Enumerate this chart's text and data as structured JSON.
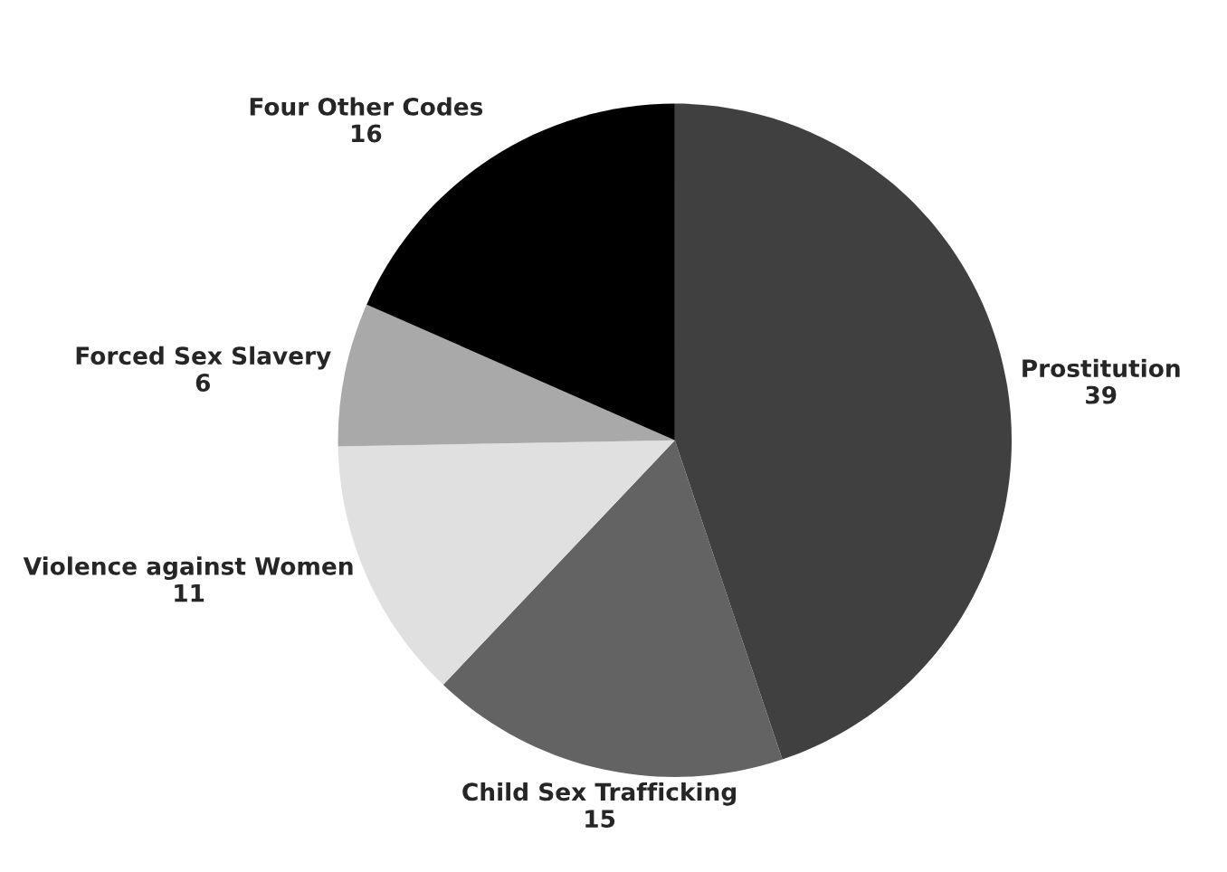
{
  "chart_data": {
    "type": "pie",
    "categories": [
      "Prostitution",
      "Child Sex Trafficking",
      "Violence against Women",
      "Forced Sex Slavery",
      "Four Other Codes"
    ],
    "values": [
      39,
      15,
      11,
      6,
      16
    ],
    "colors": [
      "#404040",
      "#636363",
      "#e0e0e0",
      "#a9a9a9",
      "#000000"
    ],
    "data_labels": true,
    "legend": false
  }
}
